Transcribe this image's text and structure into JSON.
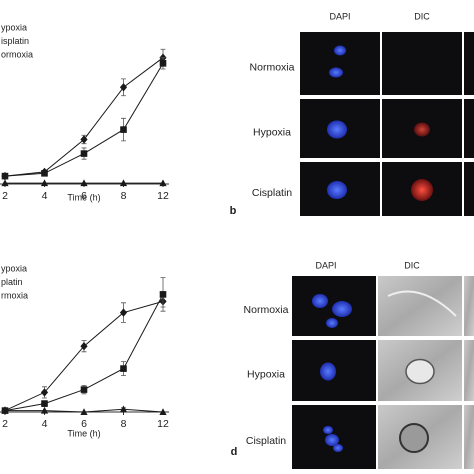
{
  "chart_data": [
    {
      "type": "line",
      "legend": "top-left",
      "xlabel": "Time (h)",
      "categories": [
        "2",
        "4",
        "6",
        "8",
        "12"
      ],
      "ylim": [
        0,
        100
      ],
      "series": [
        {
          "name": "ypoxia",
          "marker": "diamond",
          "color": "#1a1a1a",
          "values": [
            7,
            10,
            33,
            70,
            91
          ],
          "errors": [
            1,
            1,
            3,
            6,
            6
          ]
        },
        {
          "name": "isplatin",
          "marker": "square",
          "color": "#1a1a1a",
          "values": [
            7,
            9,
            23,
            40,
            87
          ],
          "errors": [
            1,
            1,
            4,
            8,
            4
          ]
        },
        {
          "name": "ormoxia",
          "marker": "triangle",
          "color": "#1a1a1a",
          "values": [
            2,
            2,
            2,
            2,
            2
          ],
          "errors": [
            0,
            0,
            0,
            0,
            0
          ]
        }
      ]
    },
    {
      "type": "line",
      "legend": "top-left",
      "xlabel": "Time (h)",
      "categories": [
        "2",
        "4",
        "6",
        "8",
        "12"
      ],
      "ylim": [
        0,
        100
      ],
      "series": [
        {
          "name": "ypoxia",
          "marker": "diamond",
          "color": "#1a1a1a",
          "values": [
            1,
            14,
            47,
            71,
            79
          ],
          "errors": [
            1,
            4,
            4,
            7,
            4
          ]
        },
        {
          "name": "platin",
          "marker": "square",
          "color": "#1a1a1a",
          "values": [
            1,
            6,
            16,
            31,
            84
          ],
          "errors": [
            1,
            2,
            3,
            5,
            12
          ]
        },
        {
          "name": "rmoxia",
          "marker": "triangle",
          "color": "#1a1a1a",
          "values": [
            1,
            1,
            0,
            2,
            0
          ],
          "errors": [
            0,
            0,
            0,
            1,
            0
          ]
        }
      ]
    }
  ],
  "panels": [
    {
      "label": "b",
      "columns": [
        "DAPI",
        "DIC"
      ],
      "rows": [
        "Normoxia",
        "Hypoxia",
        "Cisplatin"
      ]
    },
    {
      "label": "d",
      "columns": [
        "DAPI",
        "DIC"
      ],
      "rows": [
        "Normoxia",
        "Hypoxia",
        "Cisplatin"
      ]
    }
  ]
}
